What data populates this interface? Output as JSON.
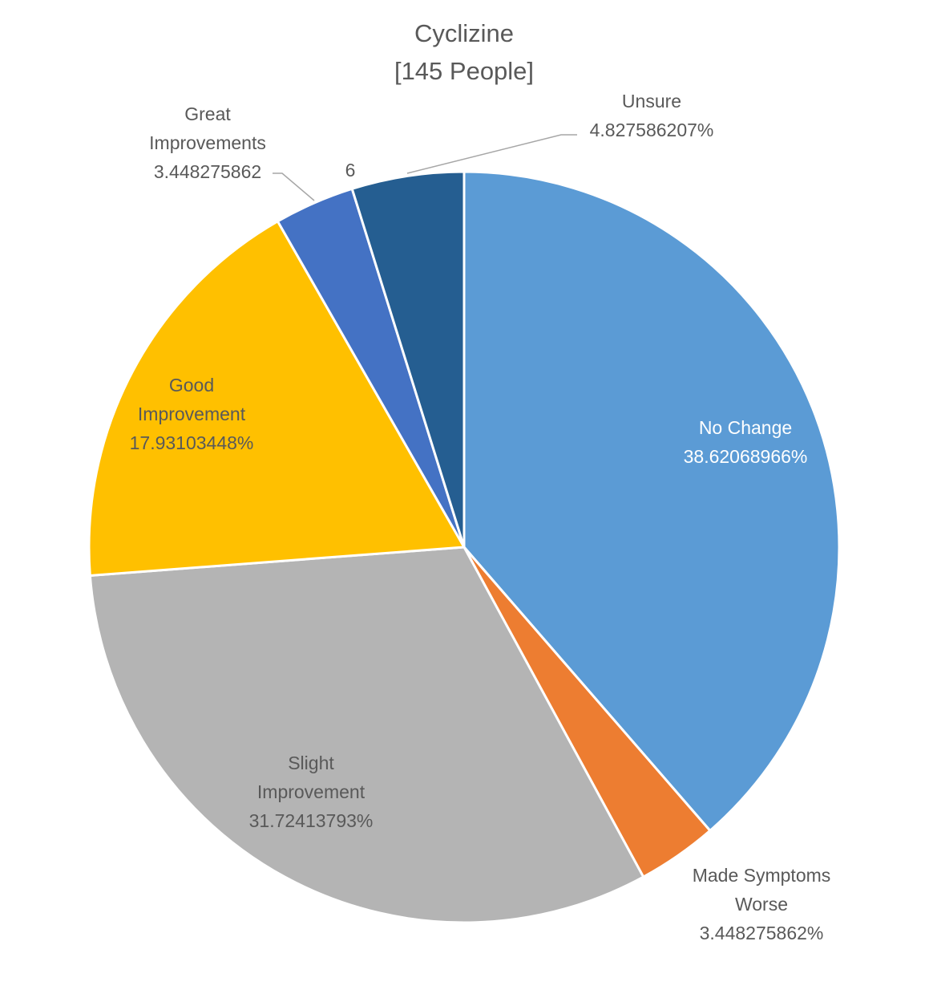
{
  "chart_data": {
    "type": "pie",
    "title": [
      "Cyclizine",
      "[145 People]"
    ],
    "start_angle_deg": 0,
    "direction": "clockwise",
    "slices": [
      {
        "name": "No Change",
        "value": 38.62068966,
        "color": "#5b9bd5",
        "label": [
          "No Change",
          "38.62068966%"
        ]
      },
      {
        "name": "Made Symptoms Worse",
        "value": 3.448275862,
        "color": "#ed7d31",
        "label": [
          "Made Symptoms",
          "Worse",
          "3.448275862%"
        ]
      },
      {
        "name": "Slight Improvement",
        "value": 31.72413793,
        "color": "#b4b4b4",
        "label": [
          "Slight",
          "Improvement",
          "31.72413793%"
        ]
      },
      {
        "name": "Good Improvement",
        "value": 17.93103448,
        "color": "#ffc000",
        "label": [
          "Good",
          "Improvement",
          "17.93103448%"
        ]
      },
      {
        "name": "Great Improvements",
        "value": 3.448275862,
        "color": "#4472c4",
        "label": [
          "Great",
          "Improvements",
          "3.448275862"
        ]
      },
      {
        "name": "Unsure",
        "value": 4.827586207,
        "color": "#255e91",
        "label": [
          "Unsure",
          "4.827586207%"
        ]
      }
    ],
    "extra_annotations": [
      "6"
    ],
    "legend": "none"
  }
}
